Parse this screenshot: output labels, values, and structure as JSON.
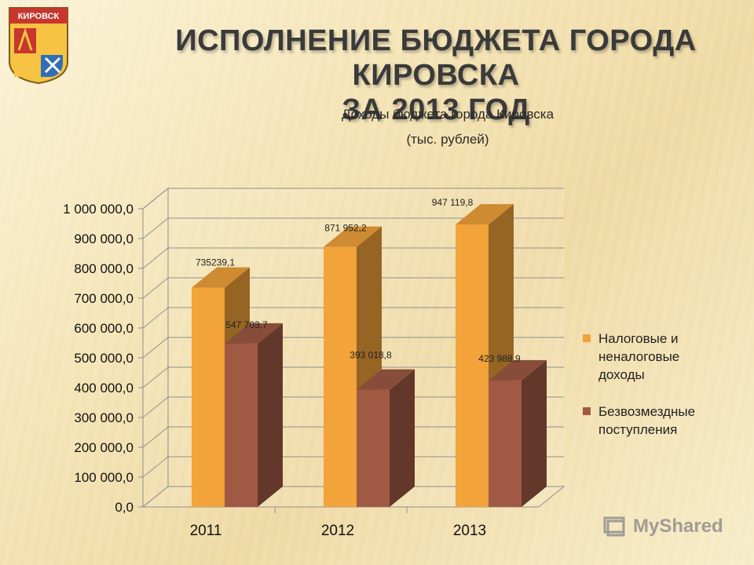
{
  "slide": {
    "title_line1": "ИСПОЛНЕНИЕ  БЮДЖЕТА  ГОРОДА КИРОВСКА",
    "title_line2": "ЗА 2013 ГОД",
    "emblem_text": "КИРОВСК",
    "watermark": "MyShared"
  },
  "chart_data": {
    "type": "bar",
    "title": "Доходы бюджета города Кировска",
    "subtitle": "(тыс. рублей)",
    "categories": [
      "2011",
      "2012",
      "2013"
    ],
    "ylim": [
      0,
      1000000
    ],
    "yticks": [
      "0,0",
      "100 000,0",
      "200 000,0",
      "300 000,0",
      "400 000,0",
      "500 000,0",
      "600 000,0",
      "700 000,0",
      "800 000,0",
      "900 000,0",
      "1 000 000,0"
    ],
    "grid": true,
    "legend_position": "right",
    "series": [
      {
        "name": "Налоговые и неналоговые доходы",
        "legend_lines": [
          "Налоговые и",
          "неналоговые",
          "доходы"
        ],
        "color": "#f2a33a",
        "values": [
          735239.1,
          871952.2,
          947119.8
        ],
        "labels": [
          "735239,1",
          "871 952,2",
          "947 119,8"
        ]
      },
      {
        "name": "Безвозмездные поступления",
        "legend_lines": [
          "Безвозмездные",
          "поступления"
        ],
        "color": "#a05a44",
        "values": [
          547703.7,
          393018.8,
          423988.9
        ],
        "labels": [
          "547 703,7",
          "393 018,8",
          "423 988,9"
        ]
      }
    ]
  }
}
